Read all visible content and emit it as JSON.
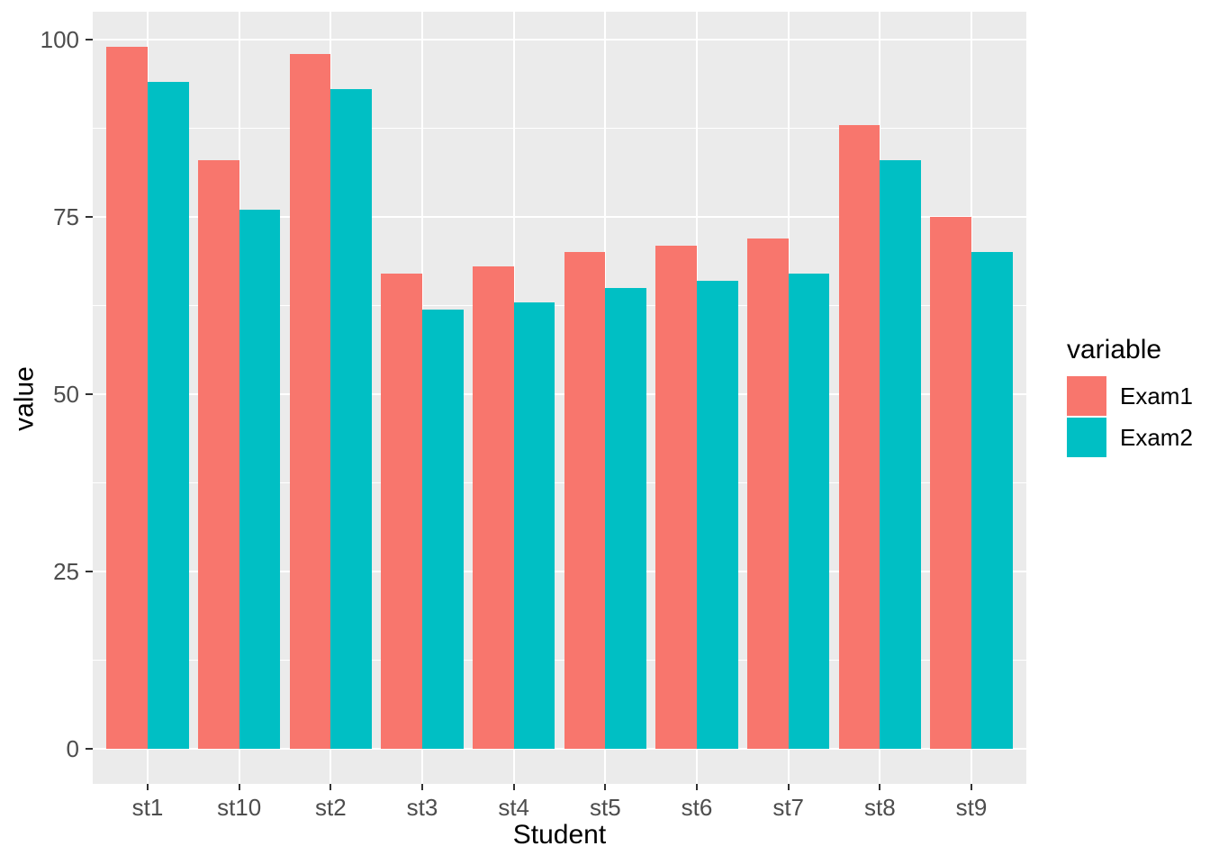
{
  "chart_data": {
    "type": "bar",
    "grouping": "dodge",
    "title": "",
    "xlabel": "Student",
    "ylabel": "value",
    "legend_title": "variable",
    "legend_position": "right",
    "categories": [
      "st1",
      "st10",
      "st2",
      "st3",
      "st4",
      "st5",
      "st6",
      "st7",
      "st8",
      "st9"
    ],
    "series": [
      {
        "name": "Exam1",
        "color": "#F8766D",
        "values": [
          99,
          83,
          98,
          67,
          68,
          70,
          71,
          72,
          88,
          75
        ]
      },
      {
        "name": "Exam2",
        "color": "#00BFC4",
        "values": [
          94,
          76,
          93,
          62,
          63,
          65,
          66,
          67,
          83,
          70
        ]
      }
    ],
    "ylim": [
      0,
      100
    ],
    "y_major_breaks": [
      0,
      25,
      50,
      75,
      100
    ],
    "y_minor_breaks": [
      12.5,
      37.5,
      62.5,
      87.5
    ],
    "grid": true,
    "panel_background": "#EBEBEB",
    "grid_color": "#FFFFFF",
    "axis_text_color": "#4D4D4D",
    "axis_title_color": "#000000",
    "tick_mark_color": "#333333"
  }
}
